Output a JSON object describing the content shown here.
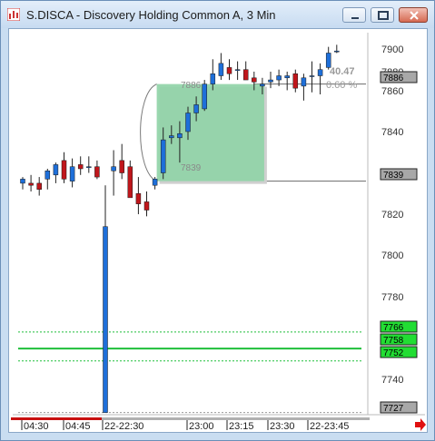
{
  "window": {
    "title": "S.DISCA - Discovery Holding Common A, 3 Min"
  },
  "colors": {
    "up_candle": "#1e6fd9",
    "down_candle": "#c0161b",
    "wick": "#222222",
    "target_box": "#8fd3a6",
    "green_line": "#1fbf3a",
    "green_tag": "#22dd33",
    "gray_tag": "#a8a8a8",
    "time_axis_red": "#c81010"
  },
  "price_axis": {
    "labels": [
      "7900",
      "7880",
      "7860",
      "7840",
      "7820",
      "7800",
      "7780",
      "7760",
      "7740"
    ],
    "tags": [
      {
        "text": "7886",
        "style": "gray"
      },
      {
        "text": "7839",
        "style": "gray"
      },
      {
        "text": "7766",
        "style": "green"
      },
      {
        "text": "7758",
        "style": "green"
      },
      {
        "text": "7752",
        "style": "green"
      },
      {
        "text": "7727",
        "style": "gray"
      }
    ]
  },
  "time_axis": {
    "labels": [
      "04:30",
      "04:45",
      "22-22:30",
      "23:00",
      "23:15",
      "23:30",
      "22-23:45"
    ]
  },
  "annotations": {
    "box_top_price": "7886",
    "box_bottom_price": "7839",
    "change_value": "40.47",
    "change_percent": "0.60 %"
  },
  "chart_data": {
    "type": "candlestick",
    "title": "",
    "ylim": [
      7727,
      7910
    ],
    "candles": [
      {
        "o": 7838,
        "h": 7841,
        "l": 7835,
        "c": 7840
      },
      {
        "o": 7838,
        "h": 7842,
        "l": 7834,
        "c": 7837
      },
      {
        "o": 7838,
        "h": 7841,
        "l": 7832,
        "c": 7835
      },
      {
        "o": 7840,
        "h": 7845,
        "l": 7835,
        "c": 7844
      },
      {
        "o": 7842,
        "h": 7848,
        "l": 7838,
        "c": 7847
      },
      {
        "o": 7849,
        "h": 7853,
        "l": 7838,
        "c": 7840
      },
      {
        "o": 7839,
        "h": 7850,
        "l": 7836,
        "c": 7846
      },
      {
        "o": 7847,
        "h": 7851,
        "l": 7842,
        "c": 7845
      },
      {
        "o": 7846,
        "h": 7851,
        "l": 7843,
        "c": 7846
      },
      {
        "o": 7846,
        "h": 7849,
        "l": 7840,
        "c": 7841
      },
      {
        "o": 7727,
        "h": 7837,
        "l": 7727,
        "c": 7817
      },
      {
        "o": 7844,
        "h": 7854,
        "l": 7832,
        "c": 7846
      },
      {
        "o": 7849,
        "h": 7857,
        "l": 7840,
        "c": 7843
      },
      {
        "o": 7846,
        "h": 7849,
        "l": 7832,
        "c": 7831
      },
      {
        "o": 7833,
        "h": 7841,
        "l": 7823,
        "c": 7828
      },
      {
        "o": 7829,
        "h": 7834,
        "l": 7822,
        "c": 7825
      },
      {
        "o": 7837,
        "h": 7841,
        "l": 7835,
        "c": 7840
      },
      {
        "o": 7843,
        "h": 7865,
        "l": 7840,
        "c": 7859
      },
      {
        "o": 7860,
        "h": 7866,
        "l": 7857,
        "c": 7861
      },
      {
        "o": 7860,
        "h": 7868,
        "l": 7848,
        "c": 7862
      },
      {
        "o": 7863,
        "h": 7875,
        "l": 7859,
        "c": 7872
      },
      {
        "o": 7872,
        "h": 7880,
        "l": 7868,
        "c": 7876
      },
      {
        "o": 7874,
        "h": 7888,
        "l": 7873,
        "c": 7886
      },
      {
        "o": 7886,
        "h": 7898,
        "l": 7883,
        "c": 7891
      },
      {
        "o": 7890,
        "h": 7901,
        "l": 7888,
        "c": 7896
      },
      {
        "o": 7894,
        "h": 7898,
        "l": 7888,
        "c": 7891
      },
      {
        "o": 7893,
        "h": 7897,
        "l": 7888,
        "c": 7893
      },
      {
        "o": 7893,
        "h": 7897,
        "l": 7888,
        "c": 7888
      },
      {
        "o": 7889,
        "h": 7892,
        "l": 7883,
        "c": 7887
      },
      {
        "o": 7885,
        "h": 7889,
        "l": 7881,
        "c": 7886
      },
      {
        "o": 7887,
        "h": 7892,
        "l": 7884,
        "c": 7888
      },
      {
        "o": 7888,
        "h": 7893,
        "l": 7885,
        "c": 7890
      },
      {
        "o": 7889,
        "h": 7892,
        "l": 7883,
        "c": 7890
      },
      {
        "o": 7891,
        "h": 7893,
        "l": 7882,
        "c": 7884
      },
      {
        "o": 7885,
        "h": 7891,
        "l": 7878,
        "c": 7889
      },
      {
        "o": 7890,
        "h": 7897,
        "l": 7882,
        "c": 7890
      },
      {
        "o": 7890,
        "h": 7896,
        "l": 7881,
        "c": 7893
      },
      {
        "o": 7894,
        "h": 7904,
        "l": 7893,
        "c": 7901
      },
      {
        "o": 7902,
        "h": 7905,
        "l": 7901,
        "c": 7902
      }
    ],
    "hlines": [
      {
        "price": 7766,
        "style": "dotted"
      },
      {
        "price": 7758,
        "style": "solid"
      },
      {
        "price": 7752,
        "style": "dotted"
      },
      {
        "price": 7727,
        "style": "dotted-gray"
      },
      {
        "price": 7839,
        "style": "gray"
      },
      {
        "price": 7886,
        "style": "gray"
      }
    ],
    "target_box": {
      "from_candle": 16,
      "to_candle": 29,
      "price_top": 7886,
      "price_bottom": 7839
    }
  }
}
